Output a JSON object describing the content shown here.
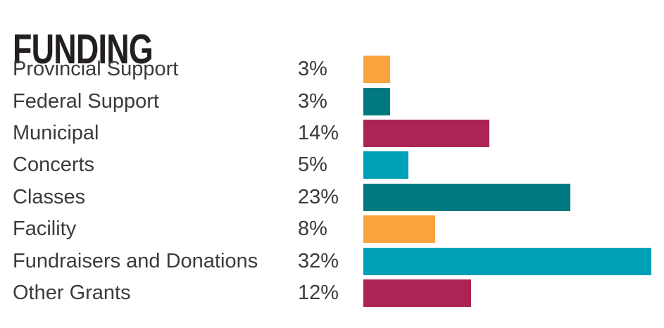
{
  "title": "FUNDING",
  "colors": {
    "title_text": "#231f20",
    "body_text": "#3b3b3b",
    "background": "#ffffff",
    "orange": "#f9a33c",
    "teal": "#00787f",
    "crimson": "#ac2456",
    "cyan": "#009fb8"
  },
  "chart_data": {
    "type": "bar",
    "orientation": "horizontal",
    "title": "FUNDING",
    "categories": [
      "Provincial Support",
      "Federal Support",
      "Municipal",
      "Concerts",
      "Classes",
      "Facility",
      "Fundraisers and Donations",
      "Other Grants"
    ],
    "values": [
      3,
      3,
      14,
      5,
      23,
      8,
      32,
      12
    ],
    "value_labels": [
      "3%",
      "3%",
      "14%",
      "5%",
      "23%",
      "8%",
      "32%",
      "12%"
    ],
    "bar_colors": [
      "#f9a33c",
      "#00787f",
      "#ac2456",
      "#009fb8",
      "#00787f",
      "#f9a33c",
      "#009fb8",
      "#ac2456"
    ],
    "xlabel": "",
    "ylabel": "",
    "xlim": [
      0,
      33.4
    ],
    "grid": false,
    "legend": false,
    "value_label_position": "column-left-of-bars"
  }
}
